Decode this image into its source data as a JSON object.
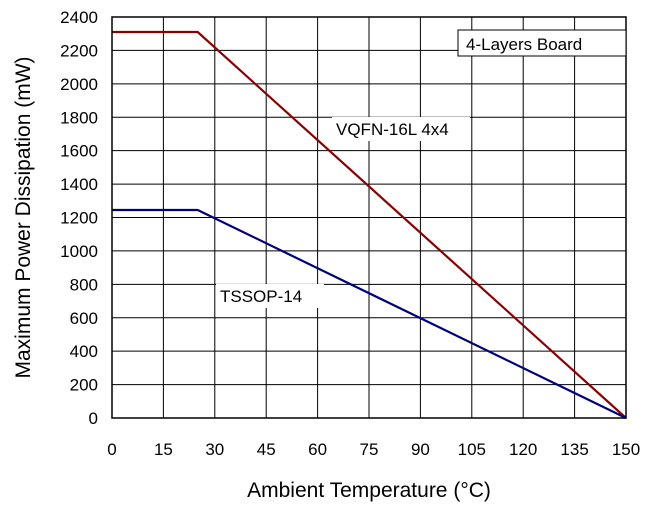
{
  "chart_data": {
    "type": "line",
    "title": "",
    "xlabel": "Ambient Temperature (°C)",
    "ylabel": "Maximum Power Dissipation (mW)",
    "xlim": [
      0,
      150
    ],
    "ylim": [
      0,
      2400
    ],
    "xticks": [
      0,
      15,
      30,
      45,
      60,
      75,
      90,
      105,
      120,
      135,
      150
    ],
    "yticks": [
      0,
      200,
      400,
      600,
      800,
      1000,
      1200,
      1400,
      1600,
      1800,
      2000,
      2200,
      2400
    ],
    "grid": true,
    "legend": "none",
    "series": [
      {
        "name": "VQFN-16L 4x4",
        "color": "#8B0000",
        "x": [
          0,
          25,
          150
        ],
        "y": [
          2310,
          2310,
          0
        ]
      },
      {
        "name": "TSSOP-14",
        "color": "#00007F",
        "x": [
          0,
          25,
          150
        ],
        "y": [
          1245,
          1245,
          0
        ]
      }
    ],
    "annotations": [
      {
        "text": "4-Layers Board",
        "boxed": true
      }
    ]
  }
}
